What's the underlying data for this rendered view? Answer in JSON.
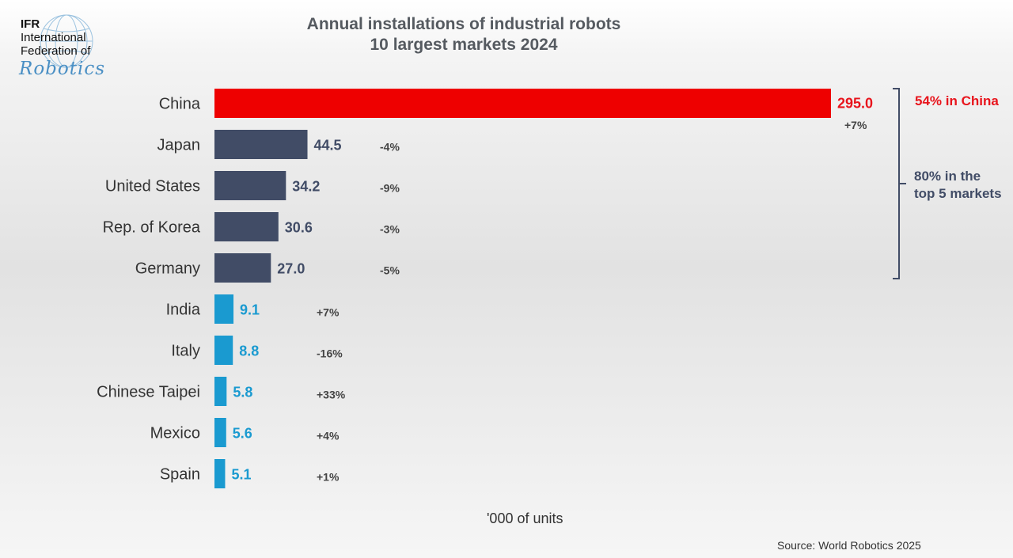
{
  "logo": {
    "line1": "IFR",
    "line2": "International",
    "line3": "Federation of",
    "line4": "Robotics"
  },
  "title_line1": "Annual installations of industrial robots",
  "title_line2": "10 largest markets 2024",
  "notes": {
    "china_share": "54% in China",
    "top5_line1": "80% in the",
    "top5_line2": "top 5 markets"
  },
  "unit_label": "'000 of units",
  "source": "Source: World Robotics 2025",
  "colors": {
    "china": "#ee0000",
    "top5": "#414c66",
    "others": "#1a9ad0",
    "title": "#555a60"
  },
  "chart_data": {
    "type": "bar",
    "orientation": "horizontal",
    "categories": [
      "China",
      "Japan",
      "United States",
      "Rep. of Korea",
      "Germany",
      "India",
      "Italy",
      "Chinese Taipei",
      "Mexico",
      "Spain"
    ],
    "values": [
      295.0,
      44.5,
      34.2,
      30.6,
      27.0,
      9.1,
      8.8,
      5.8,
      5.6,
      5.1
    ],
    "value_labels": [
      "295.0",
      "44.5",
      "34.2",
      "30.6",
      "27.0",
      "9.1",
      "8.8",
      "5.8",
      "5.6",
      "5.1"
    ],
    "change_labels": [
      "+7%",
      "-4%",
      "-9%",
      "-3%",
      "-5%",
      "+7%",
      "-16%",
      "+33%",
      "+4%",
      "+1%"
    ],
    "groups": [
      "china",
      "top5",
      "top5",
      "top5",
      "top5",
      "others",
      "others",
      "others",
      "others",
      "others"
    ],
    "xlim": [
      0,
      295
    ],
    "grid": false,
    "legend": "none"
  }
}
